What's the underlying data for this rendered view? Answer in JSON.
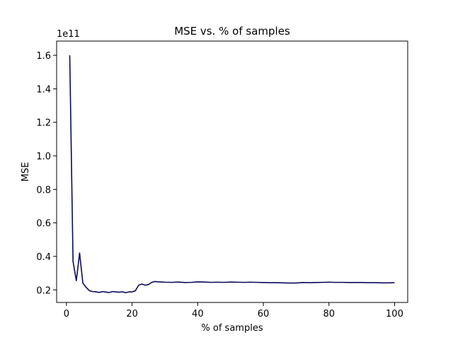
{
  "chart_data": {
    "type": "line",
    "title": "MSE vs. % of samples",
    "xlabel": "% of samples",
    "ylabel": "MSE",
    "y_offset_label": "1e11",
    "xlim": [
      -3,
      104
    ],
    "ylim": [
      0.125,
      1.685
    ],
    "x_ticks": [
      0,
      20,
      40,
      60,
      80,
      100
    ],
    "x_tick_labels": [
      "0",
      "20",
      "40",
      "60",
      "80",
      "100"
    ],
    "y_ticks": [
      0.2,
      0.4,
      0.6,
      0.8,
      1.0,
      1.2,
      1.4,
      1.6
    ],
    "y_tick_labels": [
      "0.2",
      "0.4",
      "0.6",
      "0.8",
      "1.0",
      "1.2",
      "1.4",
      "1.6"
    ],
    "grid": false,
    "colors": {
      "line": "#0a0a5a",
      "axes": "#000000",
      "background": "#ffffff"
    },
    "series": [
      {
        "x": [
          1,
          2,
          3,
          4,
          5,
          6,
          7,
          8,
          9,
          10,
          11,
          12,
          13,
          14,
          15,
          16,
          17,
          18,
          19,
          20,
          21,
          22,
          23,
          24,
          25,
          26,
          27,
          28,
          29,
          30,
          32,
          34,
          36,
          38,
          40,
          42,
          44,
          46,
          48,
          50,
          52,
          54,
          56,
          58,
          60,
          62,
          64,
          66,
          68,
          70,
          72,
          74,
          76,
          78,
          80,
          82,
          84,
          86,
          88,
          90,
          92,
          94,
          96,
          98,
          100
        ],
        "values": [
          1.6,
          0.37,
          0.255,
          0.42,
          0.24,
          0.215,
          0.195,
          0.19,
          0.188,
          0.185,
          0.19,
          0.187,
          0.184,
          0.19,
          0.188,
          0.186,
          0.189,
          0.183,
          0.188,
          0.188,
          0.195,
          0.228,
          0.235,
          0.228,
          0.232,
          0.245,
          0.25,
          0.248,
          0.247,
          0.246,
          0.245,
          0.247,
          0.244,
          0.245,
          0.248,
          0.247,
          0.245,
          0.246,
          0.245,
          0.247,
          0.246,
          0.245,
          0.246,
          0.245,
          0.244,
          0.243,
          0.243,
          0.242,
          0.241,
          0.241,
          0.244,
          0.243,
          0.244,
          0.245,
          0.246,
          0.245,
          0.245,
          0.244,
          0.244,
          0.244,
          0.243,
          0.243,
          0.242,
          0.242,
          0.243
        ]
      }
    ]
  }
}
